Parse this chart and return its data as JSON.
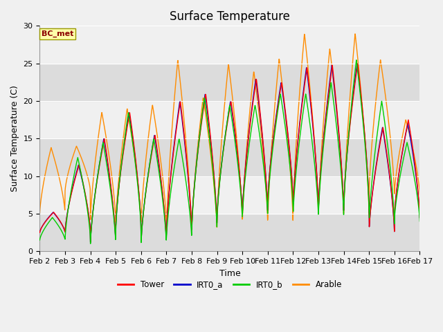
{
  "title": "Surface Temperature",
  "ylabel": "Surface Temperature (C)",
  "xlabel": "Time",
  "ylim": [
    0,
    30
  ],
  "annotation": "BC_met",
  "legend_labels": [
    "Tower",
    "IRT0_a",
    "IRT0_b",
    "Arable"
  ],
  "legend_colors": [
    "#ff0000",
    "#0000cc",
    "#00cc00",
    "#ff8c00"
  ],
  "x_tick_labels": [
    "Feb 2",
    "Feb 3",
    "Feb 4",
    "Feb 5",
    "Feb 6",
    "Feb 7",
    "Feb 8",
    "Feb 9",
    "Feb 10",
    "Feb 11",
    "Feb 12",
    "Feb 13",
    "Feb 14",
    "Feb 15",
    "Feb 16",
    "Feb 17"
  ],
  "title_fontsize": 12,
  "axis_fontsize": 9,
  "tick_fontsize": 8,
  "fig_bg": "#f0f0f0",
  "plot_bg": "#e8e8e8",
  "band_light": "#f0f0f0",
  "band_dark": "#dcdcdc",
  "tower_peaks": [
    5.2,
    11.5,
    15.0,
    18.5,
    15.5,
    20.0,
    21.0,
    20.0,
    23.0,
    22.5,
    24.5,
    24.8,
    25.0,
    16.5,
    17.5
  ],
  "tower_troughs": [
    2.5,
    2.5,
    1.0,
    3.0,
    1.0,
    2.0,
    3.0,
    4.5,
    4.8,
    6.5,
    5.5,
    5.0,
    5.8,
    2.5,
    4.5
  ],
  "irt0a_peaks": [
    5.2,
    11.5,
    15.0,
    18.5,
    15.5,
    20.0,
    21.0,
    20.0,
    23.0,
    22.5,
    24.5,
    24.8,
    25.0,
    16.5,
    17.0
  ],
  "irt0a_troughs": [
    2.5,
    2.5,
    1.0,
    3.0,
    1.0,
    2.0,
    3.0,
    4.5,
    4.8,
    6.5,
    5.5,
    5.0,
    5.8,
    2.5,
    4.5
  ],
  "irt0b_peaks": [
    4.5,
    12.5,
    14.5,
    18.5,
    15.0,
    15.0,
    20.5,
    19.5,
    19.5,
    21.0,
    21.0,
    22.5,
    25.5,
    20.0,
    14.5
  ],
  "irt0b_troughs": [
    1.5,
    1.5,
    0.8,
    2.5,
    0.8,
    1.5,
    2.5,
    4.0,
    4.5,
    5.5,
    4.5,
    4.5,
    5.0,
    3.5,
    4.0
  ],
  "arable_peaks": [
    13.8,
    14.0,
    18.5,
    19.0,
    19.5,
    25.5,
    20.5,
    25.0,
    24.0,
    25.7,
    29.0,
    27.0,
    29.0,
    25.5,
    17.5
  ],
  "arable_troughs": [
    5.0,
    8.0,
    4.0,
    3.5,
    3.5,
    2.0,
    2.5,
    3.5,
    3.5,
    3.5,
    4.5,
    4.5,
    4.5,
    7.5,
    7.5
  ]
}
